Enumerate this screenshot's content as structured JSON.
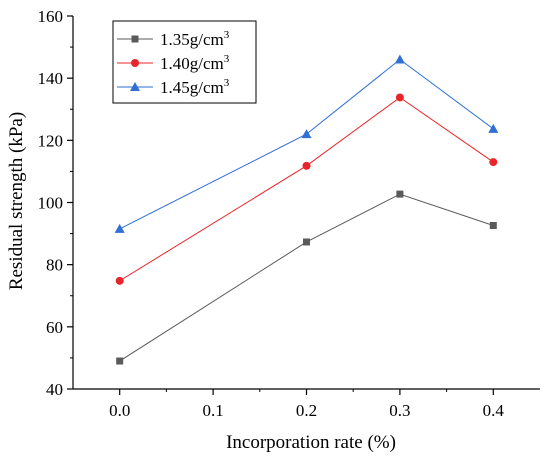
{
  "chart_data": {
    "type": "line",
    "xlabel": "Incorporation rate (%)",
    "ylabel": "Residual strength (kPa)",
    "xlim": [
      -0.05,
      0.45
    ],
    "ylim": [
      40,
      160
    ],
    "xticks": [
      "0.0",
      "0.1",
      "0.2",
      "0.3",
      "0.4"
    ],
    "yticks": [
      "40",
      "60",
      "80",
      "100",
      "120",
      "140",
      "160"
    ],
    "x": [
      0.0,
      0.2,
      0.3,
      0.4
    ],
    "legend_position": "top-left",
    "grid": false,
    "series": [
      {
        "name": "1.35g/cm",
        "superscript": "3",
        "marker": "square",
        "color": "#5a5a5a",
        "values": [
          49,
          87.3,
          102.7,
          92.6
        ]
      },
      {
        "name": "1.40g/cm",
        "superscript": "3",
        "marker": "circle",
        "color": "#e8262a",
        "values": [
          74.8,
          111.8,
          133.8,
          113
        ]
      },
      {
        "name": "1.45g/cm",
        "superscript": "3",
        "marker": "triangle",
        "color": "#2f6fd6",
        "values": [
          91.5,
          122,
          146,
          123.7
        ]
      }
    ]
  }
}
